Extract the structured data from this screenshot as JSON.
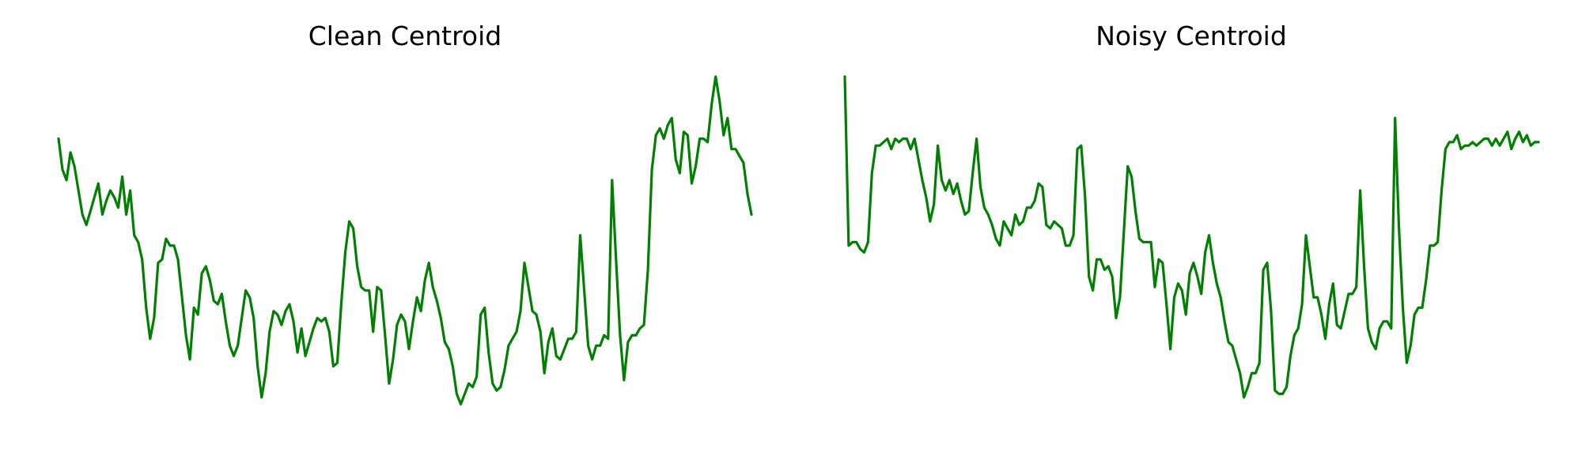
{
  "chart_data": [
    {
      "type": "line",
      "title": "Clean Centroid",
      "xlabel": "",
      "ylabel": "",
      "axes_visible": false,
      "grid": false,
      "color": "#008000",
      "ylim": [
        0,
        100
      ],
      "values": [
        86,
        77,
        74,
        82,
        78,
        71,
        64,
        61,
        65,
        69,
        73,
        64,
        68,
        71,
        69,
        66,
        75,
        64,
        71,
        58,
        56,
        51,
        37,
        28,
        34,
        50,
        51,
        57,
        55,
        55,
        51,
        40,
        29,
        22,
        37,
        35,
        47,
        49,
        45,
        39,
        38,
        41,
        33,
        26,
        23,
        26,
        34,
        42,
        40,
        34,
        20,
        11,
        18,
        30,
        36,
        35,
        32,
        36,
        38,
        33,
        24,
        31,
        23,
        27,
        31,
        34,
        33,
        34,
        30,
        20,
        21,
        38,
        53,
        62,
        60,
        49,
        43,
        42,
        42,
        30,
        43,
        42,
        29,
        15,
        22,
        32,
        35,
        33,
        25,
        33,
        40,
        36,
        45,
        50,
        43,
        39,
        34,
        27,
        25,
        20,
        12,
        9,
        12,
        15,
        14,
        17,
        35,
        37,
        24,
        15,
        13,
        14,
        19,
        26,
        28,
        30,
        36,
        50,
        43,
        36,
        35,
        30,
        18,
        27,
        31,
        23,
        22,
        25,
        28,
        28,
        30,
        58,
        42,
        26,
        22,
        26,
        26,
        29,
        28,
        74,
        51,
        29,
        16,
        27,
        29,
        29,
        31,
        32,
        48,
        77,
        87,
        89,
        86,
        90,
        92,
        80,
        76,
        88,
        87,
        73,
        78,
        86,
        86,
        85,
        96,
        104,
        97,
        87,
        92,
        83,
        83,
        81,
        79,
        70,
        64
      ]
    },
    {
      "type": "line",
      "title": "Noisy Centroid",
      "xlabel": "",
      "ylabel": "",
      "axes_visible": false,
      "grid": false,
      "color": "#008000",
      "ylim": [
        0,
        100
      ],
      "values": [
        104,
        55,
        56,
        56,
        54,
        53,
        56,
        76,
        84,
        84,
        85,
        86,
        83,
        86,
        85,
        86,
        86,
        83,
        86,
        80,
        74,
        69,
        62,
        67,
        84,
        74,
        71,
        74,
        70,
        73,
        68,
        64,
        65,
        76,
        86,
        72,
        66,
        64,
        61,
        57,
        55,
        62,
        60,
        58,
        64,
        61,
        62,
        66,
        66,
        68,
        73,
        72,
        61,
        60,
        62,
        61,
        60,
        55,
        55,
        58,
        83,
        84,
        69,
        46,
        42,
        51,
        51,
        48,
        49,
        46,
        34,
        40,
        59,
        78,
        75,
        65,
        57,
        56,
        56,
        56,
        43,
        51,
        50,
        38,
        25,
        40,
        44,
        42,
        35,
        47,
        50,
        46,
        41,
        53,
        58,
        50,
        44,
        40,
        33,
        27,
        26,
        22,
        18,
        11,
        14,
        18,
        18,
        21,
        48,
        50,
        36,
        13,
        12,
        12,
        14,
        23,
        29,
        31,
        38,
        58,
        49,
        40,
        40,
        35,
        28,
        38,
        44,
        32,
        31,
        36,
        41,
        41,
        43,
        71,
        49,
        31,
        27,
        25,
        31,
        33,
        33,
        31,
        92,
        60,
        37,
        21,
        26,
        35,
        37,
        37,
        45,
        55,
        55,
        56,
        71,
        83,
        85,
        85,
        87,
        83,
        84,
        84,
        85,
        84,
        85,
        86,
        86,
        84,
        86,
        84,
        86,
        88,
        83,
        86,
        88,
        85,
        87,
        84,
        85,
        85
      ]
    }
  ]
}
